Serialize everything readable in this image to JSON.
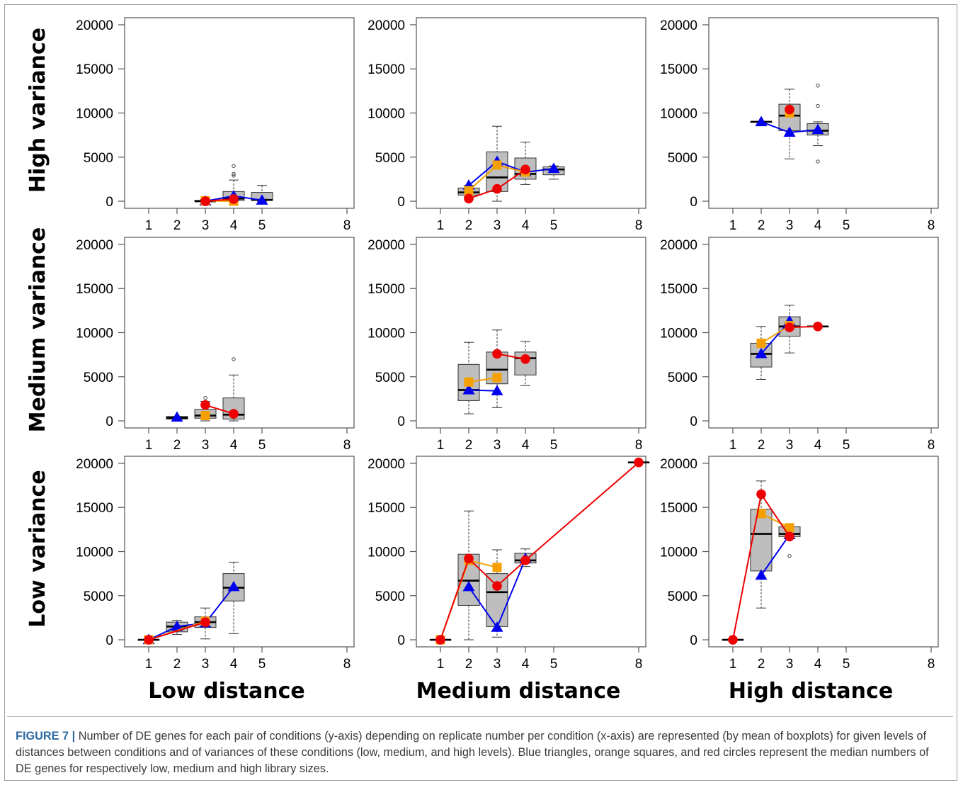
{
  "figure": {
    "caption_label": "FIGURE 7",
    "caption_sep": " | ",
    "caption_text": "Number of DE genes for each pair of conditions (y-axis) depending on replicate number per condition (x-axis) are represented (by mean of boxplots) for given levels of distances between conditions and of variances of these conditions (low, medium, and high levels). Blue triangles, orange squares, and red circles represent the median numbers of DE genes for respectively low, medium and high library sizes."
  },
  "row_labels": [
    "High variance",
    "Medium variance",
    "Low variance"
  ],
  "col_labels": [
    "Low distance",
    "Medium distance",
    "High distance"
  ],
  "colors": {
    "blue": "#0000ee",
    "orange": "#f5a000",
    "red": "#ee0000",
    "box": "#bebebe"
  },
  "chart_data": [
    {
      "type": "box",
      "row": "High variance",
      "col": "Low distance",
      "xticks": [
        1,
        2,
        3,
        4,
        5,
        8
      ],
      "yticks": [
        0,
        5000,
        10000,
        15000,
        20000
      ],
      "ylim": [
        -800,
        20800
      ],
      "xlim": [
        0.15,
        8.25
      ],
      "boxes": [
        {
          "x": 3,
          "whisker_low": 0,
          "q1": 0,
          "median": 0,
          "q3": 100,
          "whisker_high": 200,
          "outliers": []
        },
        {
          "x": 4,
          "whisker_low": 0,
          "q1": 100,
          "median": 300,
          "q3": 1100,
          "whisker_high": 2400,
          "outliers": [
            2900,
            3100,
            4000
          ]
        },
        {
          "x": 5,
          "whisker_low": 0,
          "q1": 100,
          "median": 150,
          "q3": 1000,
          "whisker_high": 1800,
          "outliers": []
        }
      ],
      "series": [
        {
          "name": "blue",
          "marker": "triangle",
          "x": [
            3,
            4,
            5
          ],
          "y": [
            0,
            600,
            100
          ]
        },
        {
          "name": "orange",
          "marker": "square",
          "x": [
            3,
            4
          ],
          "y": [
            50,
            0
          ]
        },
        {
          "name": "red",
          "marker": "circle",
          "x": [
            3,
            4
          ],
          "y": [
            0,
            250
          ]
        }
      ]
    },
    {
      "type": "box",
      "row": "High variance",
      "col": "Medium distance",
      "xticks": [
        1,
        2,
        3,
        4,
        5,
        8
      ],
      "yticks": [
        0,
        5000,
        10000,
        15000,
        20000
      ],
      "ylim": [
        -800,
        20800
      ],
      "xlim": [
        0.15,
        8.25
      ],
      "boxes": [
        {
          "x": 2,
          "whisker_low": 500,
          "q1": 700,
          "median": 1000,
          "q3": 1500,
          "whisker_high": 1800,
          "outliers": []
        },
        {
          "x": 3,
          "whisker_low": 0,
          "q1": 1100,
          "median": 2700,
          "q3": 5600,
          "whisker_high": 8500,
          "outliers": []
        },
        {
          "x": 4,
          "whisker_low": 1900,
          "q1": 2500,
          "median": 3100,
          "q3": 4900,
          "whisker_high": 6700,
          "outliers": []
        },
        {
          "x": 5,
          "whisker_low": 2500,
          "q1": 3000,
          "median": 3600,
          "q3": 3900,
          "whisker_high": 4000,
          "outliers": []
        }
      ],
      "series": [
        {
          "name": "blue",
          "marker": "triangle",
          "x": [
            2,
            3,
            4,
            5
          ],
          "y": [
            1800,
            4500,
            3300,
            3700
          ]
        },
        {
          "name": "orange",
          "marker": "square",
          "x": [
            2,
            3,
            4
          ],
          "y": [
            1200,
            4100,
            3300
          ]
        },
        {
          "name": "red",
          "marker": "circle",
          "x": [
            2,
            3,
            4
          ],
          "y": [
            300,
            1400,
            3600
          ]
        }
      ]
    },
    {
      "type": "box",
      "row": "High variance",
      "col": "High distance",
      "xticks": [
        1,
        2,
        3,
        4,
        5,
        8
      ],
      "yticks": [
        0,
        5000,
        10000,
        15000,
        20000
      ],
      "ylim": [
        -800,
        20800
      ],
      "xlim": [
        0.15,
        8.25
      ],
      "boxes": [
        {
          "x": 2,
          "whisker_low": 9000,
          "q1": 9000,
          "median": 9000,
          "q3": 9000,
          "whisker_high": 9000,
          "outliers": []
        },
        {
          "x": 3,
          "whisker_low": 4800,
          "q1": 8000,
          "median": 9700,
          "q3": 11000,
          "whisker_high": 12700,
          "outliers": []
        },
        {
          "x": 4,
          "whisker_low": 6300,
          "q1": 7500,
          "median": 8000,
          "q3": 8800,
          "whisker_high": 9000,
          "outliers": [
            4500,
            10800,
            13100
          ]
        }
      ],
      "series": [
        {
          "name": "blue",
          "marker": "triangle",
          "x": [
            2,
            3,
            4
          ],
          "y": [
            9000,
            7800,
            8100
          ]
        },
        {
          "name": "orange",
          "marker": "square",
          "x": [
            3
          ],
          "y": [
            10000
          ]
        },
        {
          "name": "red",
          "marker": "circle",
          "x": [
            3
          ],
          "y": [
            10400
          ]
        }
      ]
    },
    {
      "type": "box",
      "row": "Medium variance",
      "col": "Low distance",
      "xticks": [
        1,
        2,
        3,
        4,
        5,
        8
      ],
      "yticks": [
        0,
        5000,
        10000,
        15000,
        20000
      ],
      "ylim": [
        -800,
        20800
      ],
      "xlim": [
        0.15,
        8.25
      ],
      "boxes": [
        {
          "x": 2,
          "whisker_low": 200,
          "q1": 200,
          "median": 350,
          "q3": 500,
          "whisker_high": 500,
          "outliers": []
        },
        {
          "x": 3,
          "whisker_low": 0,
          "q1": 300,
          "median": 600,
          "q3": 1300,
          "whisker_high": 2200,
          "outliers": [
            2600
          ]
        },
        {
          "x": 4,
          "whisker_low": 0,
          "q1": 200,
          "median": 700,
          "q3": 2600,
          "whisker_high": 5200,
          "outliers": [
            7000
          ]
        }
      ],
      "series": [
        {
          "name": "blue",
          "marker": "triangle",
          "x": [
            2
          ],
          "y": [
            400
          ]
        },
        {
          "name": "orange",
          "marker": "square",
          "x": [
            3
          ],
          "y": [
            600
          ]
        },
        {
          "name": "red",
          "marker": "circle",
          "x": [
            3,
            4
          ],
          "y": [
            1800,
            800
          ]
        }
      ]
    },
    {
      "type": "box",
      "row": "Medium variance",
      "col": "Medium distance",
      "xticks": [
        1,
        2,
        3,
        4,
        5,
        8
      ],
      "yticks": [
        0,
        5000,
        10000,
        15000,
        20000
      ],
      "ylim": [
        -800,
        20800
      ],
      "xlim": [
        0.15,
        8.25
      ],
      "boxes": [
        {
          "x": 2,
          "whisker_low": 800,
          "q1": 2300,
          "median": 3500,
          "q3": 6400,
          "whisker_high": 8900,
          "outliers": []
        },
        {
          "x": 3,
          "whisker_low": 1500,
          "q1": 4200,
          "median": 5800,
          "q3": 7800,
          "whisker_high": 10300,
          "outliers": []
        },
        {
          "x": 4,
          "whisker_low": 4000,
          "q1": 5200,
          "median": 7100,
          "q3": 7800,
          "whisker_high": 9000,
          "outliers": []
        }
      ],
      "series": [
        {
          "name": "blue",
          "marker": "triangle",
          "x": [
            2,
            3
          ],
          "y": [
            3500,
            3400
          ]
        },
        {
          "name": "orange",
          "marker": "square",
          "x": [
            2,
            3
          ],
          "y": [
            4400,
            4900
          ]
        },
        {
          "name": "red",
          "marker": "circle",
          "x": [
            3,
            4
          ],
          "y": [
            7600,
            7000
          ]
        }
      ]
    },
    {
      "type": "box",
      "row": "Medium variance",
      "col": "High distance",
      "xticks": [
        1,
        2,
        3,
        4,
        5,
        8
      ],
      "yticks": [
        0,
        5000,
        10000,
        15000,
        20000
      ],
      "ylim": [
        -800,
        20800
      ],
      "xlim": [
        0.15,
        8.25
      ],
      "boxes": [
        {
          "x": 2,
          "whisker_low": 4700,
          "q1": 6100,
          "median": 7600,
          "q3": 8800,
          "whisker_high": 10700,
          "outliers": []
        },
        {
          "x": 3,
          "whisker_low": 7700,
          "q1": 9600,
          "median": 10700,
          "q3": 11800,
          "whisker_high": 13100,
          "outliers": []
        },
        {
          "x": 4,
          "whisker_low": 10700,
          "q1": 10700,
          "median": 10700,
          "q3": 10700,
          "whisker_high": 10700,
          "outliers": []
        }
      ],
      "series": [
        {
          "name": "blue",
          "marker": "triangle",
          "x": [
            2,
            3
          ],
          "y": [
            7600,
            11300
          ]
        },
        {
          "name": "orange",
          "marker": "square",
          "x": [
            2,
            3
          ],
          "y": [
            8800,
            10800
          ]
        },
        {
          "name": "red",
          "marker": "circle",
          "x": [
            3,
            4
          ],
          "y": [
            10600,
            10700
          ]
        }
      ]
    },
    {
      "type": "box",
      "row": "Low variance",
      "col": "Low distance",
      "xticks": [
        1,
        2,
        3,
        4,
        5,
        8
      ],
      "yticks": [
        0,
        5000,
        10000,
        15000,
        20000
      ],
      "ylim": [
        -800,
        20800
      ],
      "xlim": [
        0.15,
        8.25
      ],
      "boxes": [
        {
          "x": 1,
          "whisker_low": 0,
          "q1": 0,
          "median": 0,
          "q3": 0,
          "whisker_high": 0,
          "outliers": []
        },
        {
          "x": 2,
          "whisker_low": 600,
          "q1": 900,
          "median": 1500,
          "q3": 2000,
          "whisker_high": 2200,
          "outliers": []
        },
        {
          "x": 3,
          "whisker_low": 100,
          "q1": 1400,
          "median": 2000,
          "q3": 2600,
          "whisker_high": 3600,
          "outliers": []
        },
        {
          "x": 4,
          "whisker_low": 700,
          "q1": 4400,
          "median": 5900,
          "q3": 7500,
          "whisker_high": 8800,
          "outliers": []
        }
      ],
      "series": [
        {
          "name": "blue",
          "marker": "triangle",
          "x": [
            1,
            2,
            3,
            4
          ],
          "y": [
            0,
            1500,
            1900,
            6000
          ]
        },
        {
          "name": "orange",
          "marker": "square",
          "x": [
            1,
            3
          ],
          "y": [
            0,
            2100
          ]
        },
        {
          "name": "red",
          "marker": "circle",
          "x": [
            1,
            3
          ],
          "y": [
            0,
            2000
          ]
        }
      ]
    },
    {
      "type": "box",
      "row": "Low variance",
      "col": "Medium distance",
      "xticks": [
        1,
        2,
        3,
        4,
        5,
        8
      ],
      "yticks": [
        0,
        5000,
        10000,
        15000,
        20000
      ],
      "ylim": [
        -800,
        20800
      ],
      "xlim": [
        0.15,
        8.25
      ],
      "boxes": [
        {
          "x": 1,
          "whisker_low": 0,
          "q1": 0,
          "median": 0,
          "q3": 0,
          "whisker_high": 0,
          "outliers": []
        },
        {
          "x": 2,
          "whisker_low": 0,
          "q1": 3900,
          "median": 6700,
          "q3": 9700,
          "whisker_high": 14600,
          "outliers": []
        },
        {
          "x": 3,
          "whisker_low": 300,
          "q1": 1500,
          "median": 5400,
          "q3": 7500,
          "whisker_high": 10200,
          "outliers": []
        },
        {
          "x": 4,
          "whisker_low": 8300,
          "q1": 8700,
          "median": 9000,
          "q3": 9800,
          "whisker_high": 10300,
          "outliers": []
        },
        {
          "x": 8,
          "whisker_low": 20100,
          "q1": 20100,
          "median": 20100,
          "q3": 20100,
          "whisker_high": 20100,
          "outliers": []
        }
      ],
      "series": [
        {
          "name": "blue",
          "marker": "triangle",
          "x": [
            2,
            3,
            4
          ],
          "y": [
            6000,
            1400,
            9200
          ]
        },
        {
          "name": "orange",
          "marker": "square",
          "x": [
            1,
            2,
            3
          ],
          "y": [
            0,
            9000,
            8200
          ]
        },
        {
          "name": "red",
          "marker": "circle",
          "x": [
            1,
            2,
            3,
            4,
            8
          ],
          "y": [
            0,
            9200,
            6100,
            9000,
            20100
          ]
        }
      ]
    },
    {
      "type": "box",
      "row": "Low variance",
      "col": "High distance",
      "xticks": [
        1,
        2,
        3,
        4,
        5,
        8
      ],
      "yticks": [
        0,
        5000,
        10000,
        15000,
        20000
      ],
      "ylim": [
        -800,
        20800
      ],
      "xlim": [
        0.15,
        8.25
      ],
      "boxes": [
        {
          "x": 1,
          "whisker_low": 0,
          "q1": 0,
          "median": 0,
          "q3": 0,
          "whisker_high": 0,
          "outliers": []
        },
        {
          "x": 2,
          "whisker_low": 3600,
          "q1": 7800,
          "median": 12000,
          "q3": 14800,
          "whisker_high": 18000,
          "outliers": []
        },
        {
          "x": 3,
          "whisker_low": 11500,
          "q1": 11700,
          "median": 12000,
          "q3": 12800,
          "whisker_high": 12800,
          "outliers": [
            9500
          ]
        }
      ],
      "series": [
        {
          "name": "blue",
          "marker": "triangle",
          "x": [
            2,
            3
          ],
          "y": [
            7300,
            11900
          ]
        },
        {
          "name": "orange",
          "marker": "square",
          "x": [
            2,
            3
          ],
          "y": [
            14300,
            12700
          ]
        },
        {
          "name": "red",
          "marker": "circle",
          "x": [
            1,
            2,
            3
          ],
          "y": [
            0,
            16500,
            11700
          ]
        }
      ]
    }
  ]
}
